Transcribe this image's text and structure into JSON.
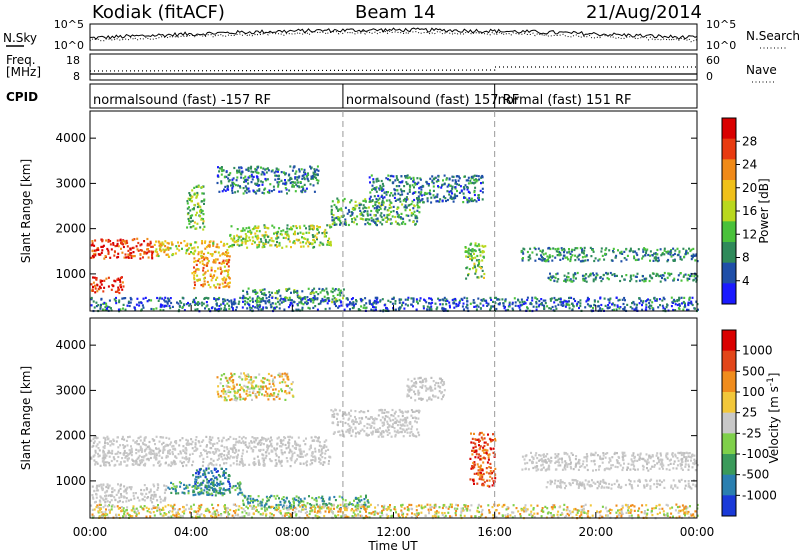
{
  "header": {
    "station": "Kodiak (fitACF)",
    "beam": "Beam 14",
    "date": "21/Aug/2014"
  },
  "nsky_panel": {
    "left_label": "N.Sky",
    "right_label": "N.Search",
    "left_ticks": [
      "10^5",
      "10^0"
    ],
    "right_ticks": [
      "10^5",
      "10^0"
    ]
  },
  "freq_panel": {
    "left_label_1": "Freq.",
    "left_label_2": "[MHz]",
    "right_label": "Nave",
    "left_ticks": [
      "18",
      "8"
    ],
    "right_ticks": [
      "60",
      "0"
    ]
  },
  "cpid_panel": {
    "label": "CPID",
    "modes": [
      {
        "text": "normalsound (fast) -157 RF",
        "start_hour": 0
      },
      {
        "text": "normalsound (fast) 157 RF",
        "start_hour": 10
      },
      {
        "text": "normal (fast) 151 RF",
        "start_hour": 16
      }
    ]
  },
  "time_axis": {
    "label": "Time UT",
    "ticks": [
      "00:00",
      "04:00",
      "08:00",
      "12:00",
      "16:00",
      "20:00",
      "00:00"
    ]
  },
  "chart_data": [
    {
      "type": "heatmap",
      "ylabel": "Slant Range [km]",
      "ylim": [
        180,
        4600
      ],
      "yticks": [
        1000,
        2000,
        3000,
        4000
      ],
      "xlim": [
        0,
        24
      ],
      "colorbar_label": "Power [dB]",
      "colorbar_ticks": [
        "4",
        "8",
        "12",
        "16",
        "20",
        "24",
        "28"
      ],
      "colorbar_colors": [
        "#1a1aff",
        "#1f4fa8",
        "#2f8a5a",
        "#49c13a",
        "#b9d81e",
        "#f0c01a",
        "#f08a18",
        "#e83a10",
        "#d90000"
      ],
      "scatter_regions": [
        {
          "t0": 0,
          "t1": 2.5,
          "r0": 1350,
          "r1": 1800,
          "level": 0.9
        },
        {
          "t0": 2.5,
          "t1": 5.5,
          "r0": 1400,
          "r1": 1750,
          "level": 0.6
        },
        {
          "t0": 5.5,
          "t1": 9.5,
          "r0": 1600,
          "r1": 2100,
          "level": 0.45
        },
        {
          "t0": 9.5,
          "t1": 13,
          "r0": 2100,
          "r1": 2700,
          "level": 0.3
        },
        {
          "t0": 0,
          "t1": 1.3,
          "r0": 600,
          "r1": 950,
          "level": 0.95
        },
        {
          "t0": 4,
          "t1": 5.5,
          "r0": 700,
          "r1": 1400,
          "level": 0.7
        },
        {
          "t0": 3.8,
          "t1": 4.5,
          "r0": 2000,
          "r1": 3000,
          "level": 0.4
        },
        {
          "t0": 6,
          "t1": 10,
          "r0": 400,
          "r1": 700,
          "level": 0.3
        },
        {
          "t0": 11,
          "t1": 15.5,
          "r0": 2600,
          "r1": 3200,
          "level": 0.2
        },
        {
          "t0": 17,
          "t1": 24,
          "r0": 1300,
          "r1": 1600,
          "level": 0.25
        },
        {
          "t0": 18,
          "t1": 24,
          "r0": 850,
          "r1": 1050,
          "level": 0.25
        },
        {
          "t0": 14.8,
          "t1": 15.6,
          "r0": 900,
          "r1": 1700,
          "level": 0.4
        },
        {
          "t0": 0,
          "t1": 24,
          "r0": 200,
          "r1": 500,
          "level": 0.15
        },
        {
          "t0": 5,
          "t1": 9,
          "r0": 2800,
          "r1": 3400,
          "level": 0.2
        }
      ]
    },
    {
      "type": "heatmap",
      "ylabel": "Slant Range [km]",
      "ylim": [
        180,
        4600
      ],
      "yticks": [
        1000,
        2000,
        3000,
        4000
      ],
      "xlim": [
        0,
        24
      ],
      "colorbar_label": "Velocity [m s^-1]",
      "colorbar_ticks": [
        "1000",
        "500",
        "100",
        "25",
        "-25",
        "-100",
        "-500",
        "-1000"
      ],
      "colorbar_colors": [
        "#1a3ad8",
        "#2a7fb0",
        "#3a9a5a",
        "#7fd04a",
        "#c8c8c8",
        "#f2c73a",
        "#f08c1c",
        "#e2461a",
        "#d90000"
      ],
      "scatter_regions": [
        {
          "t0": 0,
          "t1": 9.5,
          "r0": 1350,
          "r1": 2000,
          "vel": "gray"
        },
        {
          "t0": 9.5,
          "t1": 13,
          "r0": 2000,
          "r1": 2600,
          "vel": "gray"
        },
        {
          "t0": 0,
          "t1": 3,
          "r0": 550,
          "r1": 950,
          "vel": "gray"
        },
        {
          "t0": 4,
          "t1": 5.5,
          "r0": 700,
          "r1": 1300,
          "vel": "blue"
        },
        {
          "t0": 3,
          "t1": 6,
          "r0": 700,
          "r1": 1000,
          "vel": "green"
        },
        {
          "t0": 6,
          "t1": 11,
          "r0": 400,
          "r1": 700,
          "vel": "green"
        },
        {
          "t0": 15,
          "t1": 16,
          "r0": 900,
          "r1": 2100,
          "vel": "red"
        },
        {
          "t0": 17,
          "t1": 24,
          "r0": 1250,
          "r1": 1650,
          "vel": "gray"
        },
        {
          "t0": 18,
          "t1": 24,
          "r0": 850,
          "r1": 1050,
          "vel": "gray"
        },
        {
          "t0": 0,
          "t1": 24,
          "r0": 200,
          "r1": 500,
          "vel": "yellow"
        },
        {
          "t0": 5,
          "t1": 8,
          "r0": 2800,
          "r1": 3400,
          "vel": "yellow"
        },
        {
          "t0": 12.5,
          "t1": 14,
          "r0": 2800,
          "r1": 3300,
          "vel": "gray"
        }
      ]
    }
  ]
}
